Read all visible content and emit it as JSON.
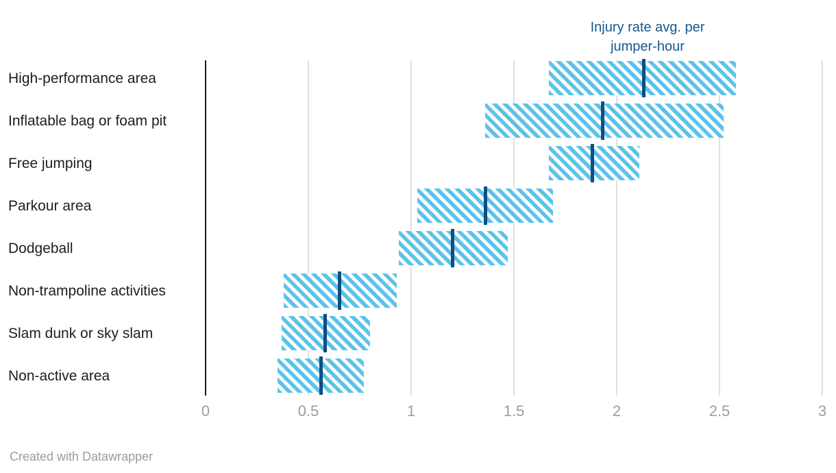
{
  "annotation": {
    "line1": "Injury rate avg. per",
    "line2": "jumper-hour"
  },
  "footer": {
    "text": "Created with Datawrapper"
  },
  "colors": {
    "hatch_stripe": "#5bc3eb",
    "hatch_background": "#ffffff",
    "avg_line": "#0f4e82",
    "annotation_text": "#15598f",
    "category_label": "#1d1d1d",
    "tick_label": "#9e9e9e",
    "gridline": "#e0e0e0",
    "axis_line": "#181818",
    "footer_text": "#9b9b9b"
  },
  "chart_data": {
    "type": "bar",
    "subtype": "horizontal-range-bars-with-average-marker",
    "title": "",
    "annotation_text": "Injury rate avg. per jumper-hour",
    "categories": [
      "High-performance area",
      "Inflatable bag or foam pit",
      "Free jumping",
      "Parkour area",
      "Dodgeball",
      "Non-trampoline activities",
      "Slam dunk or sky slam",
      "Non-active area"
    ],
    "series": [
      {
        "name": "range_low",
        "values": [
          1.67,
          1.36,
          1.67,
          1.03,
          0.94,
          0.38,
          0.37,
          0.35
        ]
      },
      {
        "name": "range_high",
        "values": [
          2.58,
          2.52,
          2.11,
          1.69,
          1.47,
          0.93,
          0.8,
          0.77
        ]
      },
      {
        "name": "injury_rate_avg_per_jumper_hour",
        "values": [
          2.13,
          1.93,
          1.88,
          1.36,
          1.2,
          0.65,
          0.58,
          0.56
        ]
      }
    ],
    "x_tick_labels": [
      "0",
      "0.5",
      "1",
      "1.5",
      "2",
      "2.5",
      "3"
    ],
    "x_tick_values": [
      0,
      0.5,
      1,
      1.5,
      2,
      2.5,
      3
    ],
    "xlim": [
      0,
      3
    ],
    "xlabel": "",
    "ylabel": "",
    "grid": true,
    "legend": "none"
  }
}
